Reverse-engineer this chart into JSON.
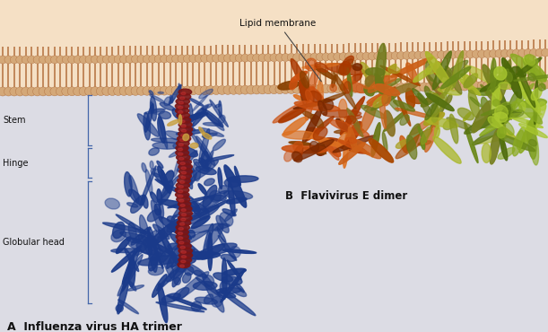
{
  "bg_color": "#dcdce4",
  "title_A": "A  Influenza virus HA trimer",
  "title_B": "B  Flavivirus E dimer",
  "label_globular": "Globular head",
  "label_hinge": "Hinge",
  "label_stem": "Stem",
  "label_membrane": "Lipid membrane",
  "blue": "#1a3a8a",
  "dark_red": "#7a1515",
  "orange": "#c85010",
  "yellow_tan": "#c8a040",
  "olive": "#788020",
  "green": "#6a8818",
  "light_green": "#9aaa28",
  "mem_head_color": "#d4a878",
  "mem_head_edge": "#b07040",
  "mem_tail_color": "#b87848",
  "mem_fill": "#f0d5b0",
  "mem_bg": "#f5e0c5"
}
